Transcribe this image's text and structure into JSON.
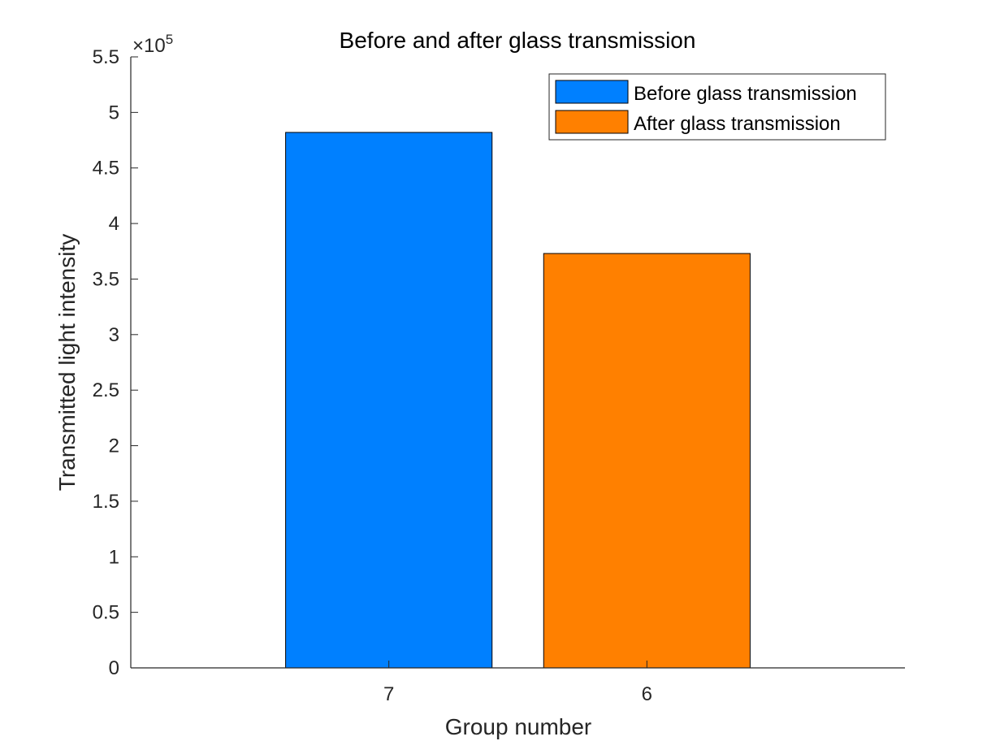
{
  "chart_data": {
    "type": "bar",
    "title": "Before and after glass transmission",
    "xlabel": "Group number",
    "ylabel": "Transmitted light intensity",
    "categories": [
      "7",
      "6"
    ],
    "series": [
      {
        "name": "Before glass transmission",
        "category": "7",
        "value": 482000,
        "color": "#0080FF"
      },
      {
        "name": "After glass transmission",
        "category": "6",
        "value": 373000,
        "color": "#FF8000"
      }
    ],
    "ylim": [
      0,
      550000
    ],
    "yticks": [
      0,
      50000,
      100000,
      150000,
      200000,
      250000,
      300000,
      350000,
      400000,
      450000,
      500000,
      550000
    ],
    "ytick_labels": [
      "0",
      "0.5",
      "1",
      "1.5",
      "2",
      "2.5",
      "3",
      "3.5",
      "4",
      "4.5",
      "5",
      "5.5"
    ],
    "y_exponent_base": "×10",
    "y_exponent_power": "5",
    "grid": false,
    "legend_position": "top-right"
  }
}
